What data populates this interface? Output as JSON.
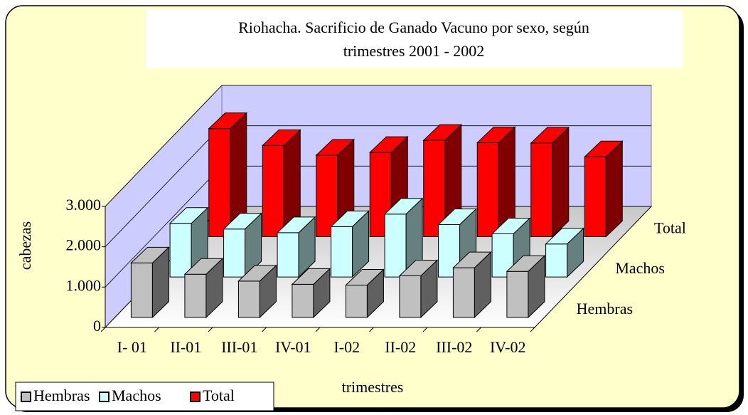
{
  "chart_data": {
    "type": "bar3d",
    "title": [
      "Riohacha. Sacrificio de Ganado Vacuno por sexo, según",
      "trimestres 2001 - 2002"
    ],
    "x_label": "trimestres",
    "y_label": "cabezas",
    "categories": [
      "I- 01",
      "II-01",
      "III-01",
      "IV-01",
      "I-02",
      "II-02",
      "III-02",
      "IV-02"
    ],
    "series": [
      {
        "name": "Hembras",
        "color": "#c0c0c0",
        "values": [
          1350,
          1070,
          900,
          820,
          800,
          1030,
          1230,
          1140
        ]
      },
      {
        "name": "Machos",
        "color": "#ccffff",
        "values": [
          1330,
          1190,
          1100,
          1250,
          1560,
          1300,
          1070,
          820
        ]
      },
      {
        "name": "Total",
        "color": "#ff0000",
        "values": [
          2680,
          2260,
          2020,
          2090,
          2390,
          2330,
          2320,
          1980
        ]
      }
    ],
    "ylim": [
      0,
      3000
    ],
    "yticks": [
      0,
      {
        "value": 1000,
        "label": "1.000"
      },
      {
        "value": 2000,
        "label": "2.000"
      },
      {
        "value": 3000,
        "label": "3.000"
      }
    ],
    "grid": true,
    "legend": "bottom-left"
  }
}
